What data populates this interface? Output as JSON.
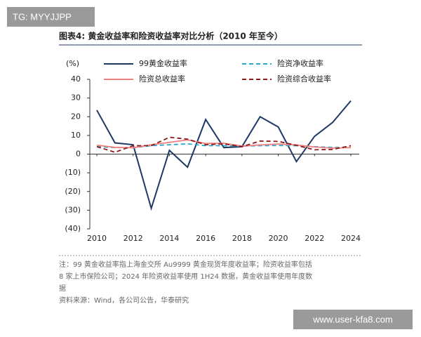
{
  "watermark_top": "TG: MYYJJPP",
  "watermark_bottom": "www.user-kfa8.com",
  "chart_data": {
    "type": "line",
    "title": "图表4:  黄金收益率和险资收益率对比分析（2010 年至今）",
    "y_label": "(%)",
    "x": [
      2010,
      2011,
      2012,
      2013,
      2014,
      2015,
      2016,
      2017,
      2018,
      2019,
      2020,
      2021,
      2022,
      2023,
      2024
    ],
    "xlim": [
      2010,
      2024
    ],
    "xticks": [
      2010,
      2012,
      2014,
      2016,
      2018,
      2020,
      2022,
      2024
    ],
    "ylim": [
      -40,
      40
    ],
    "yticks": [
      40,
      30,
      20,
      10,
      0,
      {
        "value": -10,
        "label": "(10)"
      },
      {
        "value": -20,
        "label": "(20)"
      },
      {
        "value": -30,
        "label": "(30)"
      },
      {
        "value": -40,
        "label": "(40)"
      }
    ],
    "series": [
      {
        "name": "99黄金收益率",
        "color": "#1f3864",
        "style": "solid",
        "values": [
          23.5,
          6,
          5,
          -29,
          2,
          -7,
          18.5,
          3.5,
          4,
          20,
          14.5,
          -4,
          9.5,
          17,
          28.5
        ]
      },
      {
        "name": "险资净收益率",
        "color": "#2aa7c9",
        "style": "dashed",
        "values": [
          4,
          3.5,
          3.4,
          4.5,
          5,
          5.5,
          4.5,
          4.5,
          4.3,
          4.5,
          4.6,
          4.5,
          4,
          3.6,
          3.5
        ]
      },
      {
        "name": "险资总收益率",
        "color": "#f08080",
        "style": "solid",
        "values": [
          4.8,
          3.6,
          3.4,
          5,
          6.3,
          7.6,
          5.7,
          5.8,
          4.3,
          4.9,
          5.4,
          4.9,
          3.8,
          3.2,
          3.5
        ]
      },
      {
        "name": "险资综合收益率",
        "color": "#8b1a1a",
        "style": "dashed",
        "values": [
          4,
          1,
          4.5,
          4.5,
          9,
          8,
          5,
          5.5,
          4,
          7,
          6.8,
          4.7,
          2.3,
          2.5,
          4.5
        ]
      }
    ],
    "notes": [
      "注：99 黄金收益率指上海金交所 Au9999 黄金现货年度收益率；险资收益率包括",
      "8 家上市保险公司；2024 年险资收益率使用 1H24 数据，黄金收益率使用年度数",
      "据",
      "资料来源：Wind，各公司公告，华泰研究"
    ]
  }
}
